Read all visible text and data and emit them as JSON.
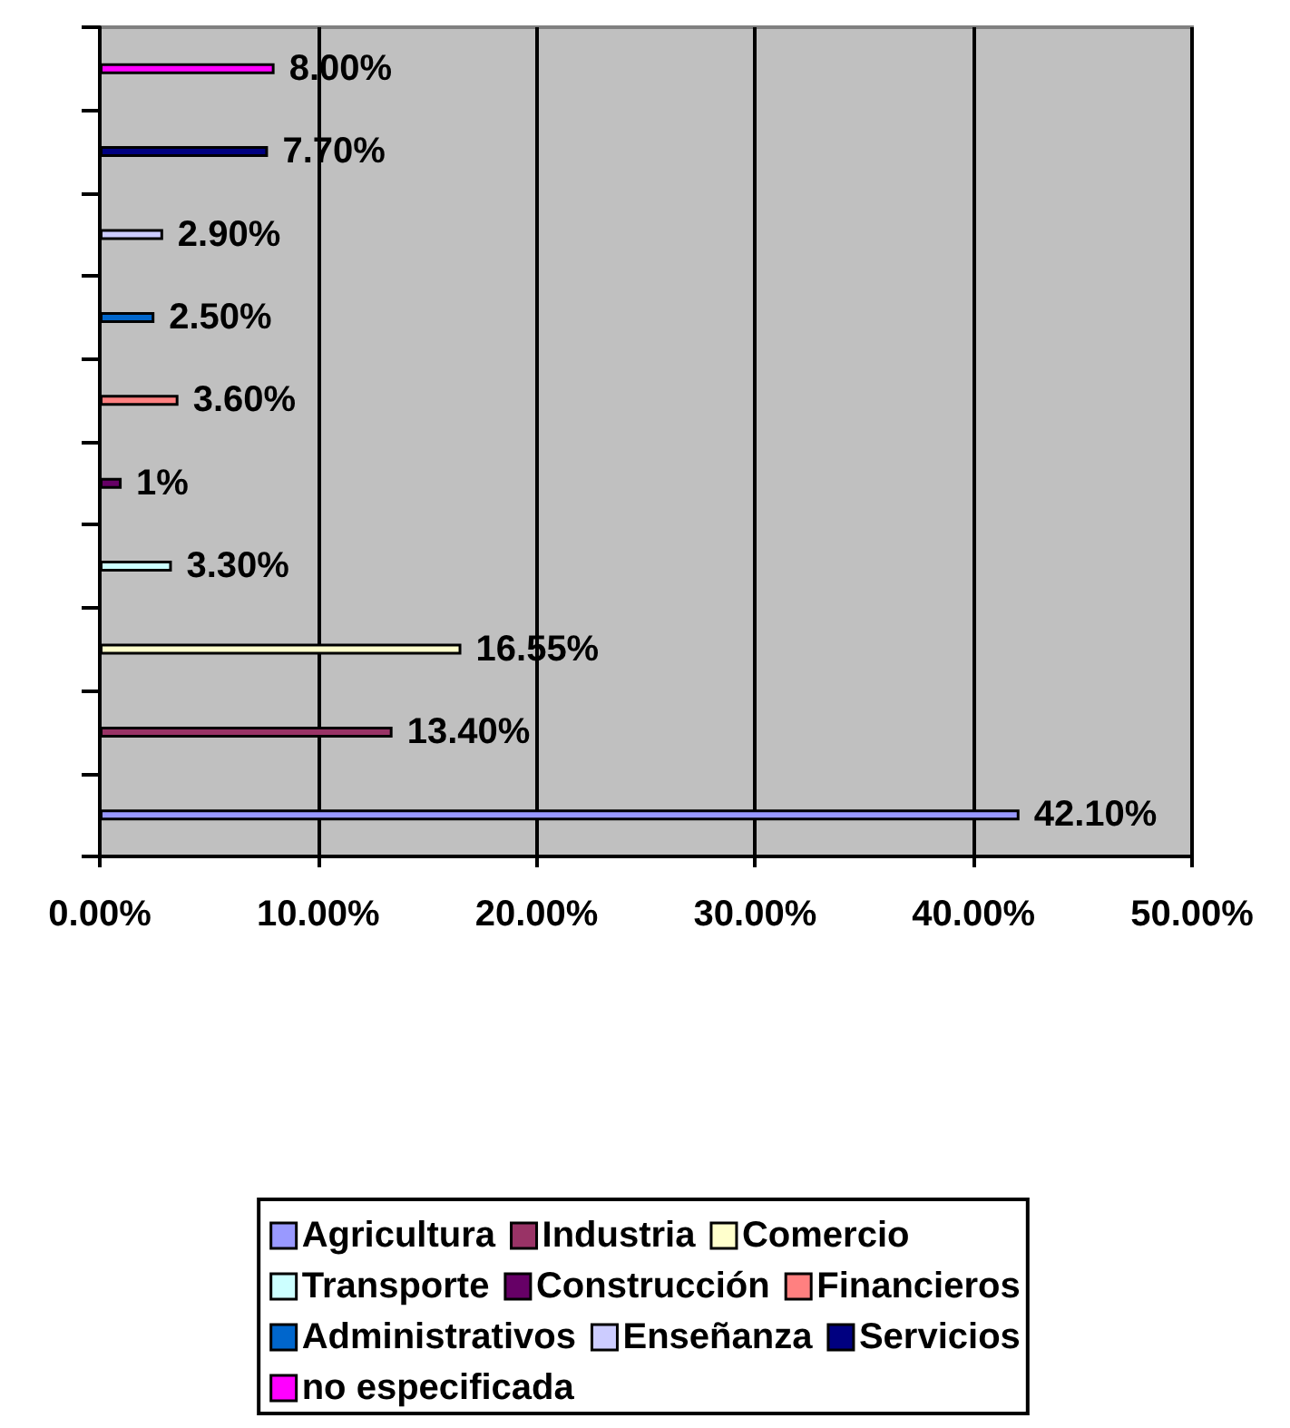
{
  "chart_data": {
    "type": "bar",
    "orientation": "horizontal",
    "categories": [
      null,
      null,
      null,
      null,
      null,
      null,
      null,
      null,
      null,
      null
    ],
    "xlim": [
      0,
      50
    ],
    "xticks": [
      {
        "value": 0,
        "label": "0.00%"
      },
      {
        "value": 10,
        "label": "10.00%"
      },
      {
        "value": 20,
        "label": "20.00%"
      },
      {
        "value": 30,
        "label": "30.00%"
      },
      {
        "value": 40,
        "label": "40.00%"
      },
      {
        "value": 50,
        "label": "50.00%"
      }
    ],
    "grid": "x",
    "legend": "bottom",
    "series": [
      {
        "name": "Agricultura",
        "color": "#9999ff",
        "values": [
          null,
          null,
          null,
          null,
          null,
          null,
          null,
          null,
          null,
          42.1
        ],
        "value_labels": [
          null,
          null,
          null,
          null,
          null,
          null,
          null,
          null,
          null,
          "42.10%"
        ]
      },
      {
        "name": "Industria",
        "color": "#993366",
        "values": [
          null,
          null,
          null,
          null,
          null,
          null,
          null,
          null,
          13.4,
          null
        ],
        "value_labels": [
          null,
          null,
          null,
          null,
          null,
          null,
          null,
          null,
          "13.40%",
          null
        ]
      },
      {
        "name": "Comercio",
        "color": "#ffffcc",
        "values": [
          null,
          null,
          null,
          null,
          null,
          null,
          null,
          16.55,
          null,
          null
        ],
        "value_labels": [
          null,
          null,
          null,
          null,
          null,
          null,
          null,
          "16.55%",
          null,
          null
        ]
      },
      {
        "name": "Transporte",
        "color": "#ccffff",
        "values": [
          null,
          null,
          null,
          null,
          null,
          null,
          3.3,
          null,
          null,
          null
        ],
        "value_labels": [
          null,
          null,
          null,
          null,
          null,
          null,
          "3.30%",
          null,
          null,
          null
        ]
      },
      {
        "name": "Construcción",
        "color": "#660066",
        "values": [
          null,
          null,
          null,
          null,
          null,
          1,
          null,
          null,
          null,
          null
        ],
        "value_labels": [
          null,
          null,
          null,
          null,
          null,
          "1%",
          null,
          null,
          null,
          null
        ]
      },
      {
        "name": "Financieros",
        "color": "#ff8080",
        "values": [
          null,
          null,
          null,
          null,
          3.6,
          null,
          null,
          null,
          null,
          null
        ],
        "value_labels": [
          null,
          null,
          null,
          null,
          "3.60%",
          null,
          null,
          null,
          null,
          null
        ]
      },
      {
        "name": "Administrativos",
        "color": "#0066cc",
        "values": [
          null,
          null,
          null,
          2.5,
          null,
          null,
          null,
          null,
          null,
          null
        ],
        "value_labels": [
          null,
          null,
          null,
          "2.50%",
          null,
          null,
          null,
          null,
          null,
          null
        ]
      },
      {
        "name": "Enseñanza",
        "color": "#ccccff",
        "values": [
          null,
          null,
          2.9,
          null,
          null,
          null,
          null,
          null,
          null,
          null
        ],
        "value_labels": [
          null,
          null,
          "2.90%",
          null,
          null,
          null,
          null,
          null,
          null,
          null
        ]
      },
      {
        "name": "Servicios",
        "color": "#000080",
        "values": [
          null,
          7.7,
          null,
          null,
          null,
          null,
          null,
          null,
          null,
          null
        ],
        "value_labels": [
          null,
          "7.70%",
          null,
          null,
          null,
          null,
          null,
          null,
          null,
          null
        ]
      },
      {
        "name": "no especificada",
        "color": "#ff00ff",
        "values": [
          8.0,
          null,
          null,
          null,
          null,
          null,
          null,
          null,
          null,
          null
        ],
        "value_labels": [
          "8.00%",
          null,
          null,
          null,
          null,
          null,
          null,
          null,
          null,
          null
        ]
      }
    ]
  }
}
